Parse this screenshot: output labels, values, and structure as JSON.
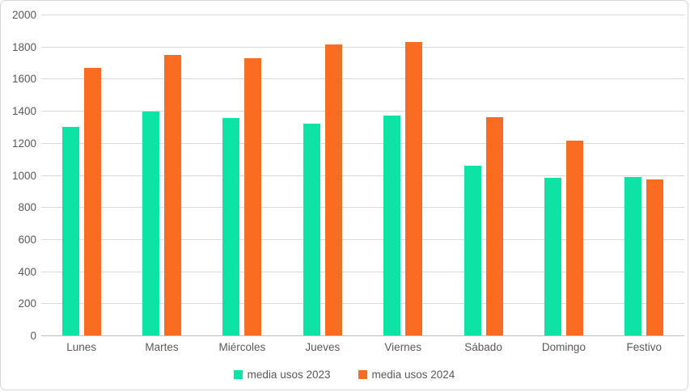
{
  "chart_data": {
    "type": "bar",
    "title": "",
    "xlabel": "",
    "ylabel": "",
    "categories": [
      "Lunes",
      "Martes",
      "Miércoles",
      "Jueves",
      "Viernes",
      "Sábado",
      "Domingo",
      "Festivo"
    ],
    "series": [
      {
        "name": "media usos 2023",
        "color": "#0de3a4",
        "values": [
          1300,
          1395,
          1355,
          1320,
          1370,
          1060,
          980,
          985
        ]
      },
      {
        "name": "media usos 2024",
        "color": "#fb6c23",
        "values": [
          1670,
          1750,
          1730,
          1815,
          1830,
          1360,
          1215,
          970
        ]
      }
    ],
    "ylim": [
      0,
      2000
    ],
    "yticks": [
      0,
      200,
      400,
      600,
      800,
      1000,
      1200,
      1400,
      1600,
      1800,
      2000
    ],
    "grid": "horizontal",
    "legend_position": "bottom"
  },
  "colors": {
    "background": "#ffffff",
    "border": "#d7d7d7",
    "gridline": "#d9d9d9",
    "axis_line": "#bfbfbf",
    "text": "#595959",
    "series_2023": "#0de3a4",
    "series_2024": "#fb6c23"
  }
}
